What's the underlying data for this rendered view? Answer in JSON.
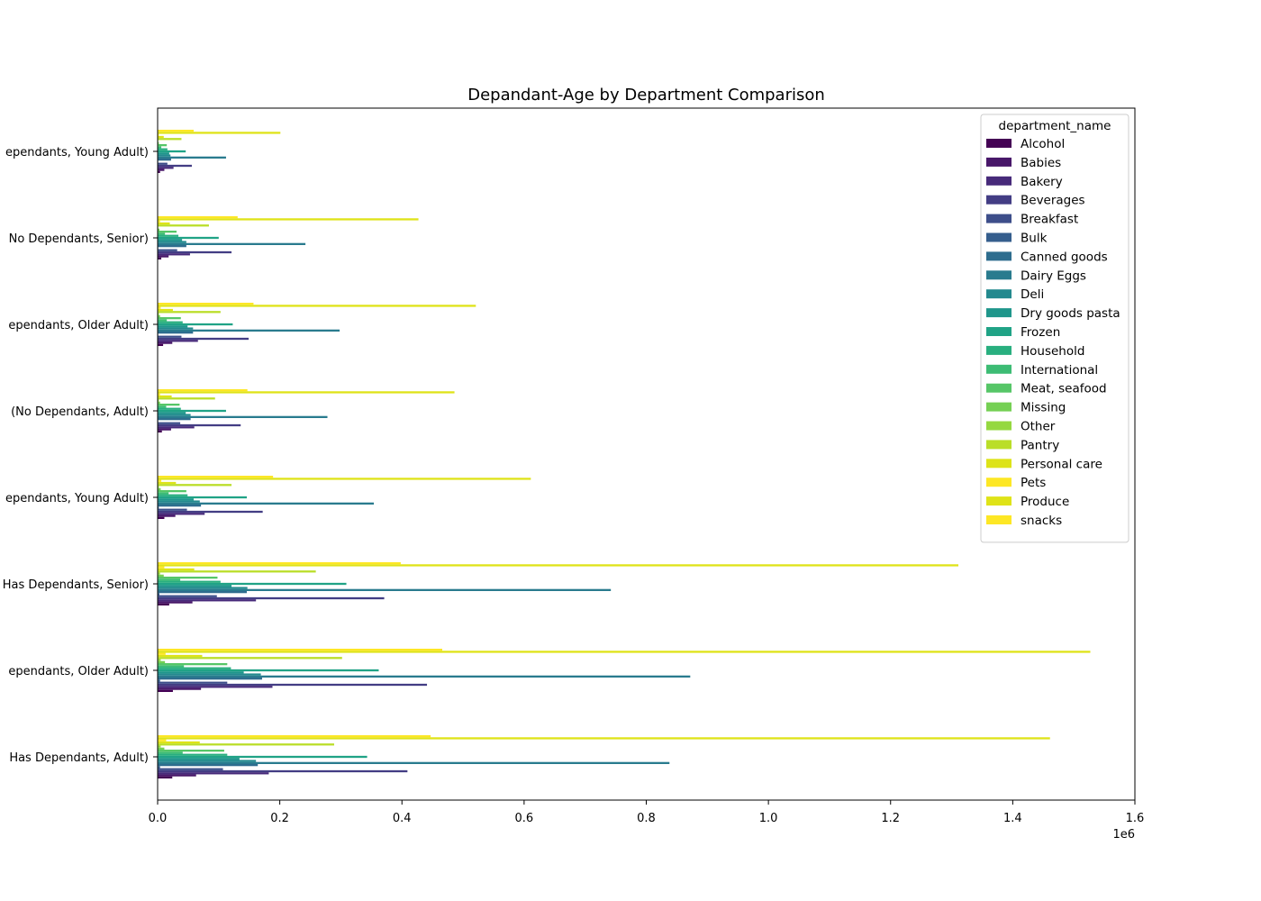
{
  "chart_data": {
    "type": "bar",
    "orientation": "horizontal",
    "title": "Depandant-Age by Department Comparison",
    "xlabel": "",
    "ylabel": "",
    "x_scale_label": "1e6",
    "xlim": [
      0,
      1.6
    ],
    "x_ticks": [
      "0.0",
      "0.2",
      "0.4",
      "0.6",
      "0.8",
      "1.0",
      "1.2",
      "1.4",
      "1.6"
    ],
    "grid": false,
    "legend": {
      "title": "department_name",
      "placement": "top-right"
    },
    "categories": [
      "Has Dependants, Adult)",
      "ependants, Older Adult)",
      "Has Dependants, Senior)",
      "ependants, Young Adult)",
      "(No Dependants, Adult)",
      "ependants, Older Adult)",
      "No Dependants, Senior)",
      "ependants, Young Adult)"
    ],
    "series": [
      {
        "name": "Alcohol",
        "color": "#440154",
        "values": [
          0.024,
          0.025,
          0.019,
          0.011,
          0.007,
          0.009,
          0.006,
          0.004
        ]
      },
      {
        "name": "Babies",
        "color": "#481769",
        "values": [
          0.063,
          0.071,
          0.057,
          0.029,
          0.022,
          0.024,
          0.018,
          0.011
        ]
      },
      {
        "name": "Bakery",
        "color": "#472a7a",
        "values": [
          0.182,
          0.188,
          0.161,
          0.077,
          0.06,
          0.066,
          0.053,
          0.026
        ]
      },
      {
        "name": "Beverages",
        "color": "#433d84",
        "values": [
          0.409,
          0.441,
          0.371,
          0.172,
          0.136,
          0.149,
          0.121,
          0.056
        ]
      },
      {
        "name": "Breakfast",
        "color": "#3d4e8a",
        "values": [
          0.107,
          0.114,
          0.097,
          0.048,
          0.037,
          0.039,
          0.032,
          0.016
        ]
      },
      {
        "name": "Bulk",
        "color": "#355e8d",
        "values": [
          0.004,
          0.004,
          0.003,
          0.002,
          0.001,
          0.001,
          0.001,
          0.001
        ]
      },
      {
        "name": "Canned goods",
        "color": "#2e6d8e",
        "values": [
          0.164,
          0.171,
          0.146,
          0.071,
          0.054,
          0.058,
          0.047,
          0.022
        ]
      },
      {
        "name": "Dairy Eggs",
        "color": "#297b8e",
        "values": [
          0.838,
          0.872,
          0.742,
          0.354,
          0.278,
          0.298,
          0.242,
          0.112
        ]
      },
      {
        "name": "Deli",
        "color": "#23898e",
        "values": [
          0.161,
          0.169,
          0.147,
          0.069,
          0.054,
          0.058,
          0.047,
          0.021
        ]
      },
      {
        "name": "Dry goods pasta",
        "color": "#1f968b",
        "values": [
          0.134,
          0.141,
          0.121,
          0.059,
          0.046,
          0.049,
          0.04,
          0.019
        ]
      },
      {
        "name": "Frozen",
        "color": "#20a386",
        "values": [
          0.343,
          0.362,
          0.309,
          0.146,
          0.112,
          0.123,
          0.1,
          0.046
        ]
      },
      {
        "name": "Household",
        "color": "#29af7f",
        "values": [
          0.114,
          0.12,
          0.103,
          0.049,
          0.038,
          0.041,
          0.034,
          0.016
        ]
      },
      {
        "name": "International",
        "color": "#3dbc74",
        "values": [
          0.041,
          0.043,
          0.037,
          0.018,
          0.014,
          0.015,
          0.012,
          0.006
        ]
      },
      {
        "name": "Meat, seafood",
        "color": "#56c667",
        "values": [
          0.109,
          0.114,
          0.098,
          0.047,
          0.036,
          0.038,
          0.031,
          0.015
        ]
      },
      {
        "name": "Missing",
        "color": "#75d054",
        "values": [
          0.011,
          0.012,
          0.01,
          0.005,
          0.004,
          0.004,
          0.003,
          0.002
        ]
      },
      {
        "name": "Other",
        "color": "#95d840",
        "values": [
          0.005,
          0.005,
          0.004,
          0.002,
          0.002,
          0.002,
          0.001,
          0.001
        ]
      },
      {
        "name": "Pantry",
        "color": "#bade28",
        "values": [
          0.289,
          0.302,
          0.259,
          0.121,
          0.094,
          0.103,
          0.084,
          0.039
        ]
      },
      {
        "name": "Personal care",
        "color": "#dde318",
        "values": [
          0.069,
          0.073,
          0.06,
          0.03,
          0.023,
          0.025,
          0.02,
          0.01
        ]
      },
      {
        "name": "Pets",
        "color": "#fde725",
        "values": [
          0.014,
          0.013,
          0.011,
          0.006,
          0.004,
          0.005,
          0.004,
          0.002
        ]
      },
      {
        "name": "Produce",
        "color": "#dfe318",
        "values": [
          1.461,
          1.527,
          1.311,
          0.611,
          0.486,
          0.521,
          0.427,
          0.201
        ]
      },
      {
        "name": "snacks",
        "color": "#fde725",
        "values": [
          0.447,
          0.466,
          0.398,
          0.189,
          0.147,
          0.157,
          0.131,
          0.059
        ]
      }
    ]
  }
}
